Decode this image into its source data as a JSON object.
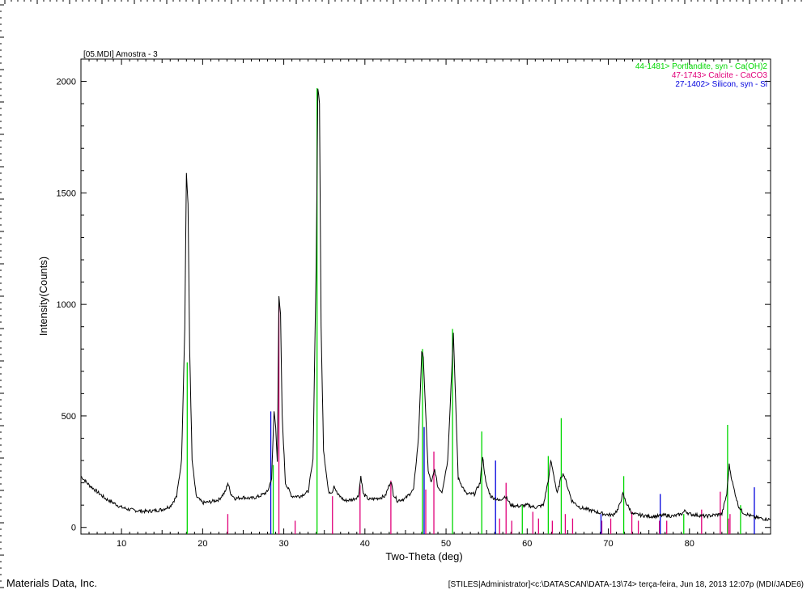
{
  "chart_data": {
    "type": "line",
    "title": "[05.MDI] Amostra - 3",
    "xlabel": "Two-Theta (deg)",
    "ylabel": "Intensity(Counts)",
    "xlim": [
      5,
      90
    ],
    "ylim": [
      -30,
      2100
    ],
    "x_ticks": [
      10,
      20,
      30,
      40,
      50,
      60,
      70,
      80
    ],
    "y_ticks": [
      0,
      500,
      1000,
      1500,
      2000
    ],
    "grid": false,
    "legend_position": "top-right",
    "legend": [
      {
        "label": "44-1481> Portlandite, syn - Ca(OH)2",
        "color": "#00d800"
      },
      {
        "label": "47-1743> Calcite - CaCO3",
        "color": "#e0007a"
      },
      {
        "label": "27-1402> Silicon, syn - Si",
        "color": "#0000dd"
      }
    ],
    "series": [
      {
        "name": "[05.MDI] Amostra - 3",
        "color": "#000000",
        "x": [
          5,
          6,
          7,
          8,
          9,
          10,
          11,
          12,
          13,
          14,
          15,
          16,
          16.8,
          17.4,
          17.8,
          18.0,
          18.2,
          18.4,
          18.7,
          19.2,
          20,
          21,
          22,
          22.8,
          23.1,
          23.5,
          24,
          25,
          26,
          27,
          28,
          28.5,
          28.8,
          29.0,
          29.2,
          29.4,
          29.6,
          29.8,
          30.2,
          31,
          32,
          33,
          33.6,
          34.0,
          34.2,
          34.4,
          34.6,
          34.9,
          35.5,
          36.0,
          36.2,
          36.6,
          37.5,
          38.5,
          39.2,
          39.5,
          39.8,
          40.5,
          41.5,
          42.5,
          43.2,
          43.5,
          44,
          45,
          46,
          46.6,
          47.0,
          47.2,
          47.5,
          47.8,
          48.2,
          48.6,
          49.0,
          49.5,
          50.2,
          50.7,
          50.9,
          51.1,
          51.5,
          52.5,
          53.5,
          54.2,
          54.5,
          54.9,
          55.5,
          56.5,
          57.3,
          58,
          59,
          60,
          61,
          62,
          62.7,
          62.9,
          63.2,
          63.7,
          64.2,
          64.5,
          65.0,
          65.5,
          66.5,
          67.5,
          68.5,
          69.5,
          70.5,
          71.2,
          71.8,
          72.2,
          73,
          74,
          75,
          76,
          77,
          78,
          79,
          79.5,
          80,
          81,
          82,
          83,
          84,
          84.6,
          84.9,
          85.3,
          86,
          86.5,
          87,
          88,
          89,
          90
        ],
        "y": [
          230,
          190,
          160,
          130,
          110,
          90,
          80,
          75,
          72,
          75,
          80,
          95,
          140,
          300,
          900,
          1590,
          1450,
          800,
          300,
          140,
          110,
          115,
          125,
          160,
          200,
          150,
          130,
          135,
          130,
          140,
          160,
          220,
          520,
          450,
          300,
          1030,
          950,
          500,
          200,
          140,
          140,
          160,
          300,
          1200,
          1970,
          1900,
          900,
          350,
          160,
          160,
          190,
          150,
          120,
          125,
          140,
          230,
          150,
          125,
          130,
          140,
          210,
          150,
          120,
          130,
          170,
          400,
          780,
          770,
          500,
          250,
          200,
          260,
          180,
          160,
          300,
          700,
          880,
          650,
          220,
          150,
          150,
          200,
          320,
          200,
          140,
          120,
          140,
          100,
          95,
          100,
          90,
          100,
          230,
          300,
          250,
          150,
          230,
          240,
          180,
          120,
          90,
          80,
          70,
          60,
          55,
          80,
          150,
          110,
          60,
          55,
          50,
          50,
          55,
          50,
          60,
          75,
          60,
          55,
          50,
          55,
          60,
          150,
          280,
          200,
          100,
          70,
          60,
          45,
          40,
          35
        ]
      }
    ],
    "reference_lines": [
      {
        "name": "44-1481> Portlandite, syn - Ca(OH)2",
        "color": "#00d800",
        "x": [
          18.1,
          28.7,
          34.1,
          47.1,
          50.8,
          54.4,
          59.4,
          62.6,
          64.2,
          71.9,
          79.3,
          84.7,
          86.3
        ],
        "y": [
          740,
          280,
          1970,
          800,
          890,
          430,
          100,
          320,
          490,
          230,
          60,
          460,
          100
        ]
      },
      {
        "name": "47-1743> Calcite - CaCO3",
        "color": "#e0007a",
        "x": [
          23.1,
          29.4,
          31.4,
          36.0,
          39.4,
          43.2,
          47.5,
          48.5,
          56.6,
          57.4,
          58.1,
          60.7,
          61.4,
          63.1,
          64.7,
          65.6,
          69.2,
          70.3,
          72.9,
          73.7,
          76.3,
          77.2,
          81.5,
          83.8,
          84.8,
          85.0
        ],
        "y": [
          60,
          1000,
          30,
          140,
          190,
          210,
          170,
          340,
          40,
          200,
          30,
          70,
          40,
          30,
          60,
          40,
          30,
          40,
          70,
          30,
          30,
          30,
          80,
          160,
          40,
          60
        ]
      },
      {
        "name": "27-1402> Silicon, syn - Si",
        "color": "#0000dd",
        "x": [
          28.4,
          47.3,
          56.1,
          69.1,
          76.4,
          88.0
        ],
        "y": [
          520,
          450,
          300,
          60,
          150,
          180
        ]
      }
    ]
  },
  "footer": {
    "left": "Materials Data, Inc.",
    "right": "[STILES|Administrator]<c:\\DATASCAN\\DATA-13\\74> terça-feira, Jun 18, 2013 12:07p (MDI/JADE6)"
  }
}
